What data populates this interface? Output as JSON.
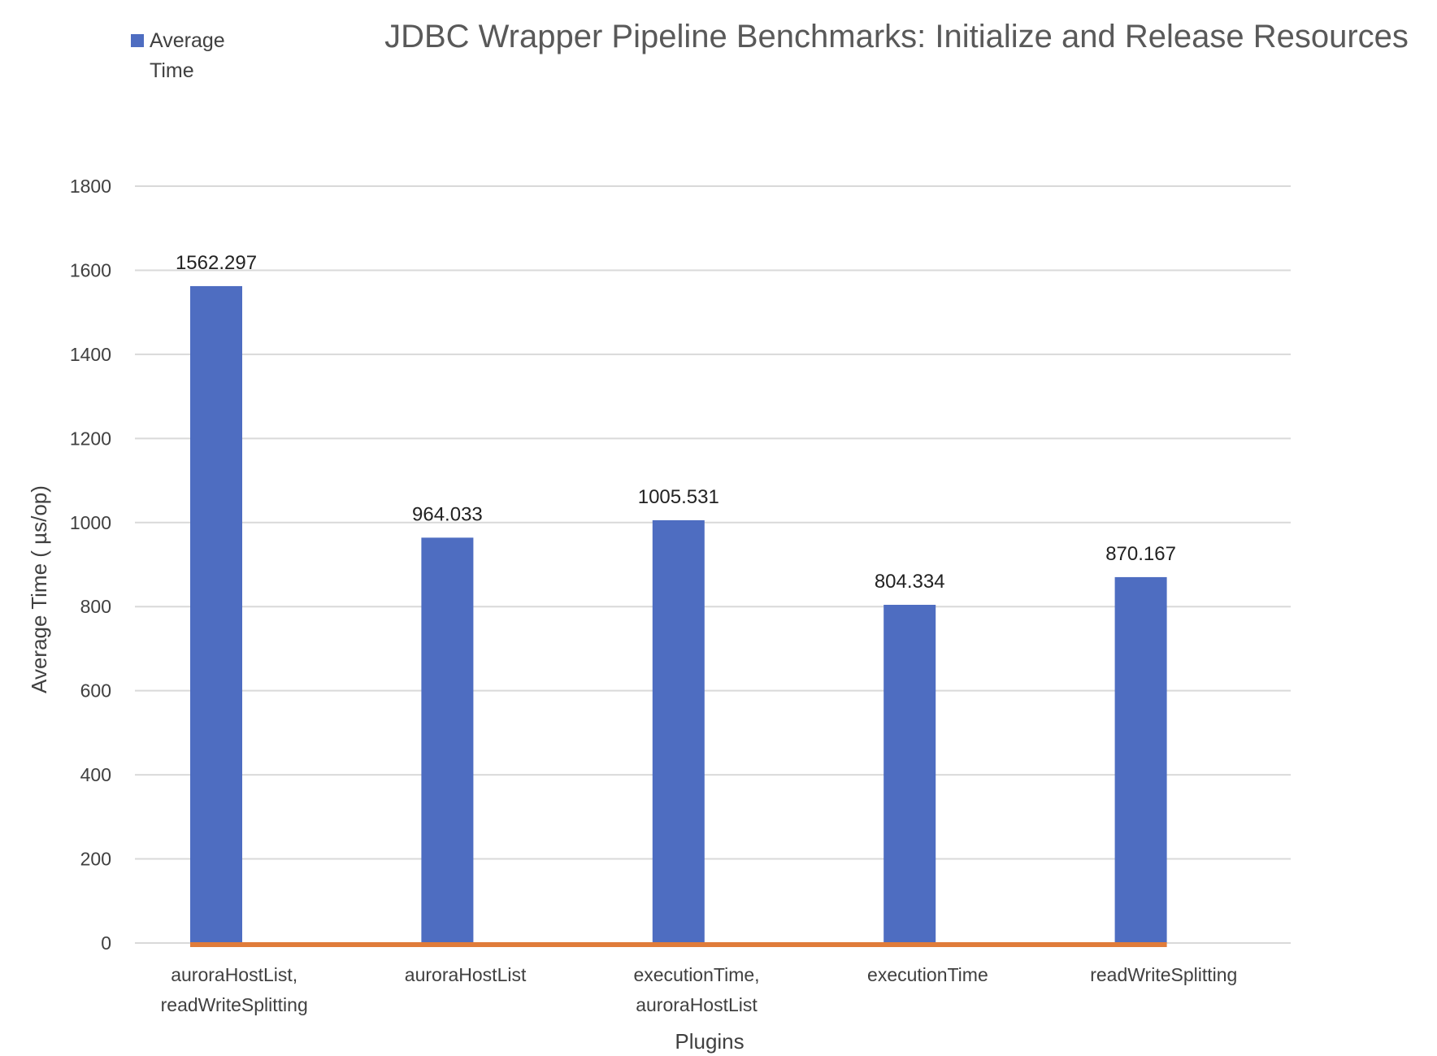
{
  "chart_data": {
    "type": "bar",
    "title": "JDBC Wrapper Pipeline Benchmarks: Initialize and Release Resources",
    "xlabel": "Plugins",
    "ylabel": "Average Time ( µs/op)",
    "ylim": [
      0,
      1800
    ],
    "yticks": [
      0,
      200,
      400,
      600,
      800,
      1000,
      1200,
      1400,
      1600,
      1800
    ],
    "grid": true,
    "legend_position": "top-left",
    "categories": [
      [
        "auroraHostList,",
        "readWriteSplitting"
      ],
      [
        "auroraHostList"
      ],
      [
        "executionTime,",
        "auroraHostList"
      ],
      [
        "executionTime"
      ],
      [
        "readWriteSplitting"
      ]
    ],
    "series": [
      {
        "name": "Average Time",
        "legend_lines": [
          "Average",
          "Time"
        ],
        "color": "#4e6dc1",
        "values": [
          1562.297,
          964.033,
          1005.531,
          804.334,
          870.167
        ],
        "value_labels": [
          "1562.297",
          "964.033",
          "1005.531",
          "804.334",
          "870.167"
        ]
      }
    ],
    "baseline_color": "#e07c3a"
  }
}
